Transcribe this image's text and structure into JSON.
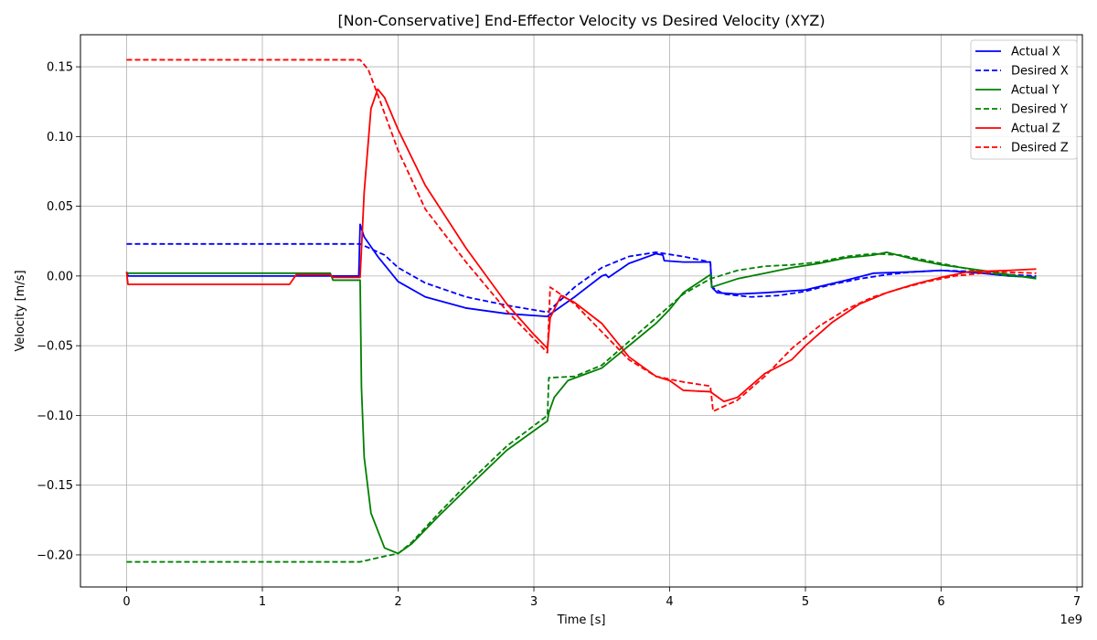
{
  "chart_data": {
    "type": "line",
    "title": "[Non-Conservative] End-Effector Velocity vs Desired Velocity (XYZ)",
    "xlabel": "Time [s]",
    "ylabel": "Velocity [m/s]",
    "x_offset_label": "1e9",
    "xlim": [
      -0.34,
      7.04
    ],
    "ylim": [
      -0.223,
      0.173
    ],
    "x_ticks": [
      0,
      1,
      2,
      3,
      4,
      5,
      6,
      7
    ],
    "x_tick_labels": [
      "0",
      "1",
      "2",
      "3",
      "4",
      "5",
      "6",
      "7"
    ],
    "y_ticks": [
      -0.2,
      -0.15,
      -0.1,
      -0.05,
      0.0,
      0.05,
      0.1,
      0.15
    ],
    "y_tick_labels": [
      "−0.20",
      "−0.15",
      "−0.10",
      "−0.05",
      "0.00",
      "0.05",
      "0.10",
      "0.15"
    ],
    "grid": true,
    "legend_position": "top-right",
    "series": [
      {
        "name": "Actual X",
        "color": "#0000ff",
        "dash": "solid",
        "points": [
          [
            0,
            0.003
          ],
          [
            0.01,
            0
          ],
          [
            1.0,
            0
          ],
          [
            1.5,
            0
          ],
          [
            1.71,
            0
          ],
          [
            1.72,
            0.037
          ],
          [
            1.75,
            0.028
          ],
          [
            1.85,
            0.014
          ],
          [
            2.0,
            -0.004
          ],
          [
            2.2,
            -0.015
          ],
          [
            2.5,
            -0.023
          ],
          [
            2.8,
            -0.027
          ],
          [
            3.1,
            -0.029
          ],
          [
            3.11,
            -0.028
          ],
          [
            3.3,
            -0.015
          ],
          [
            3.5,
            0.0
          ],
          [
            3.53,
            0.001
          ],
          [
            3.55,
            -0.001
          ],
          [
            3.7,
            0.009
          ],
          [
            3.9,
            0.016
          ],
          [
            3.95,
            0.015
          ],
          [
            3.96,
            0.011
          ],
          [
            4.1,
            0.01
          ],
          [
            4.3,
            0.01
          ],
          [
            4.31,
            -0.008
          ],
          [
            4.35,
            -0.012
          ],
          [
            4.5,
            -0.013
          ],
          [
            4.7,
            -0.012
          ],
          [
            5.0,
            -0.01
          ],
          [
            5.3,
            -0.003
          ],
          [
            5.5,
            0.002
          ],
          [
            5.8,
            0.003
          ],
          [
            6.0,
            0.004
          ],
          [
            6.3,
            0.002
          ],
          [
            6.5,
            0.0
          ],
          [
            6.7,
            -0.001
          ]
        ]
      },
      {
        "name": "Desired X",
        "color": "#0000ff",
        "dash": "dashed",
        "points": [
          [
            0,
            0.023
          ],
          [
            0.5,
            0.023
          ],
          [
            1.0,
            0.023
          ],
          [
            1.5,
            0.023
          ],
          [
            1.72,
            0.023
          ],
          [
            1.9,
            0.015
          ],
          [
            2.0,
            0.006
          ],
          [
            2.2,
            -0.005
          ],
          [
            2.5,
            -0.015
          ],
          [
            2.8,
            -0.021
          ],
          [
            3.1,
            -0.026
          ],
          [
            3.11,
            -0.025
          ],
          [
            3.3,
            -0.008
          ],
          [
            3.5,
            0.006
          ],
          [
            3.7,
            0.014
          ],
          [
            3.9,
            0.017
          ],
          [
            4.1,
            0.014
          ],
          [
            4.3,
            0.01
          ],
          [
            4.31,
            -0.008
          ],
          [
            4.4,
            -0.013
          ],
          [
            4.6,
            -0.015
          ],
          [
            4.8,
            -0.014
          ],
          [
            5.0,
            -0.011
          ],
          [
            5.2,
            -0.006
          ],
          [
            5.4,
            -0.002
          ],
          [
            5.6,
            0.001
          ],
          [
            5.8,
            0.003
          ],
          [
            6.0,
            0.004
          ],
          [
            6.3,
            0.003
          ],
          [
            6.5,
            0.001
          ],
          [
            6.7,
            0.0
          ]
        ]
      },
      {
        "name": "Actual Y",
        "color": "#008000",
        "dash": "solid",
        "points": [
          [
            0,
            0.002
          ],
          [
            1.0,
            0.002
          ],
          [
            1.5,
            0.002
          ],
          [
            1.52,
            -0.003
          ],
          [
            1.72,
            -0.003
          ],
          [
            1.73,
            -0.08
          ],
          [
            1.75,
            -0.13
          ],
          [
            1.8,
            -0.17
          ],
          [
            1.9,
            -0.195
          ],
          [
            2.0,
            -0.199
          ],
          [
            2.1,
            -0.192
          ],
          [
            2.3,
            -0.172
          ],
          [
            2.5,
            -0.153
          ],
          [
            2.8,
            -0.125
          ],
          [
            3.1,
            -0.104
          ],
          [
            3.11,
            -0.098
          ],
          [
            3.15,
            -0.087
          ],
          [
            3.25,
            -0.075
          ],
          [
            3.5,
            -0.066
          ],
          [
            3.7,
            -0.05
          ],
          [
            3.9,
            -0.034
          ],
          [
            4.0,
            -0.024
          ],
          [
            4.1,
            -0.012
          ],
          [
            4.3,
            0.001
          ],
          [
            4.31,
            -0.008
          ],
          [
            4.5,
            -0.002
          ],
          [
            4.7,
            0.002
          ],
          [
            4.9,
            0.006
          ],
          [
            5.1,
            0.009
          ],
          [
            5.3,
            0.013
          ],
          [
            5.5,
            0.015
          ],
          [
            5.6,
            0.017
          ],
          [
            5.8,
            0.012
          ],
          [
            6.0,
            0.008
          ],
          [
            6.3,
            0.004
          ],
          [
            6.5,
            0.001
          ],
          [
            6.7,
            -0.002
          ]
        ]
      },
      {
        "name": "Desired Y",
        "color": "#008000",
        "dash": "dashed",
        "points": [
          [
            0,
            -0.205
          ],
          [
            0.5,
            -0.205
          ],
          [
            1.0,
            -0.205
          ],
          [
            1.5,
            -0.205
          ],
          [
            1.72,
            -0.205
          ],
          [
            1.9,
            -0.201
          ],
          [
            2.0,
            -0.199
          ],
          [
            2.1,
            -0.191
          ],
          [
            2.3,
            -0.17
          ],
          [
            2.5,
            -0.15
          ],
          [
            2.8,
            -0.122
          ],
          [
            3.1,
            -0.1
          ],
          [
            3.11,
            -0.073
          ],
          [
            3.3,
            -0.072
          ],
          [
            3.5,
            -0.064
          ],
          [
            3.7,
            -0.047
          ],
          [
            3.9,
            -0.03
          ],
          [
            4.1,
            -0.013
          ],
          [
            4.3,
            -0.002
          ],
          [
            4.5,
            0.004
          ],
          [
            4.7,
            0.007
          ],
          [
            4.9,
            0.008
          ],
          [
            5.1,
            0.01
          ],
          [
            5.3,
            0.014
          ],
          [
            5.5,
            0.016
          ],
          [
            5.7,
            0.015
          ],
          [
            5.9,
            0.011
          ],
          [
            6.1,
            0.007
          ],
          [
            6.3,
            0.003
          ],
          [
            6.5,
            0.0
          ],
          [
            6.7,
            -0.001
          ]
        ]
      },
      {
        "name": "Actual Z",
        "color": "#ff0000",
        "dash": "solid",
        "points": [
          [
            0,
            0.003
          ],
          [
            0.01,
            -0.006
          ],
          [
            1.0,
            -0.006
          ],
          [
            1.2,
            -0.006
          ],
          [
            1.25,
            0.001
          ],
          [
            1.5,
            0.001
          ],
          [
            1.52,
            -0.001
          ],
          [
            1.72,
            -0.001
          ],
          [
            1.75,
            0.06
          ],
          [
            1.8,
            0.12
          ],
          [
            1.85,
            0.134
          ],
          [
            1.9,
            0.128
          ],
          [
            2.0,
            0.105
          ],
          [
            2.2,
            0.065
          ],
          [
            2.5,
            0.02
          ],
          [
            2.8,
            -0.02
          ],
          [
            3.0,
            -0.042
          ],
          [
            3.1,
            -0.052
          ],
          [
            3.12,
            -0.03
          ],
          [
            3.2,
            -0.014
          ],
          [
            3.3,
            -0.019
          ],
          [
            3.5,
            -0.034
          ],
          [
            3.7,
            -0.058
          ],
          [
            3.9,
            -0.072
          ],
          [
            4.0,
            -0.075
          ],
          [
            4.1,
            -0.082
          ],
          [
            4.3,
            -0.083
          ],
          [
            4.4,
            -0.09
          ],
          [
            4.5,
            -0.087
          ],
          [
            4.7,
            -0.07
          ],
          [
            4.9,
            -0.06
          ],
          [
            5.0,
            -0.05
          ],
          [
            5.2,
            -0.033
          ],
          [
            5.4,
            -0.02
          ],
          [
            5.6,
            -0.012
          ],
          [
            5.8,
            -0.006
          ],
          [
            6.0,
            -0.001
          ],
          [
            6.2,
            0.003
          ],
          [
            6.5,
            0.004
          ],
          [
            6.7,
            0.005
          ]
        ]
      },
      {
        "name": "Desired Z",
        "color": "#ff0000",
        "dash": "dashed",
        "points": [
          [
            0,
            0.155
          ],
          [
            0.5,
            0.155
          ],
          [
            1.0,
            0.155
          ],
          [
            1.5,
            0.155
          ],
          [
            1.72,
            0.155
          ],
          [
            1.78,
            0.148
          ],
          [
            1.85,
            0.13
          ],
          [
            2.0,
            0.09
          ],
          [
            2.2,
            0.048
          ],
          [
            2.5,
            0.01
          ],
          [
            2.8,
            -0.025
          ],
          [
            3.0,
            -0.045
          ],
          [
            3.1,
            -0.055
          ],
          [
            3.12,
            -0.008
          ],
          [
            3.3,
            -0.02
          ],
          [
            3.5,
            -0.04
          ],
          [
            3.7,
            -0.06
          ],
          [
            3.9,
            -0.072
          ],
          [
            4.1,
            -0.076
          ],
          [
            4.3,
            -0.079
          ],
          [
            4.32,
            -0.097
          ],
          [
            4.5,
            -0.089
          ],
          [
            4.7,
            -0.072
          ],
          [
            4.9,
            -0.052
          ],
          [
            5.1,
            -0.036
          ],
          [
            5.3,
            -0.024
          ],
          [
            5.5,
            -0.015
          ],
          [
            5.7,
            -0.009
          ],
          [
            5.9,
            -0.004
          ],
          [
            6.1,
            0.0
          ],
          [
            6.4,
            0.003
          ],
          [
            6.7,
            0.002
          ]
        ]
      }
    ]
  }
}
